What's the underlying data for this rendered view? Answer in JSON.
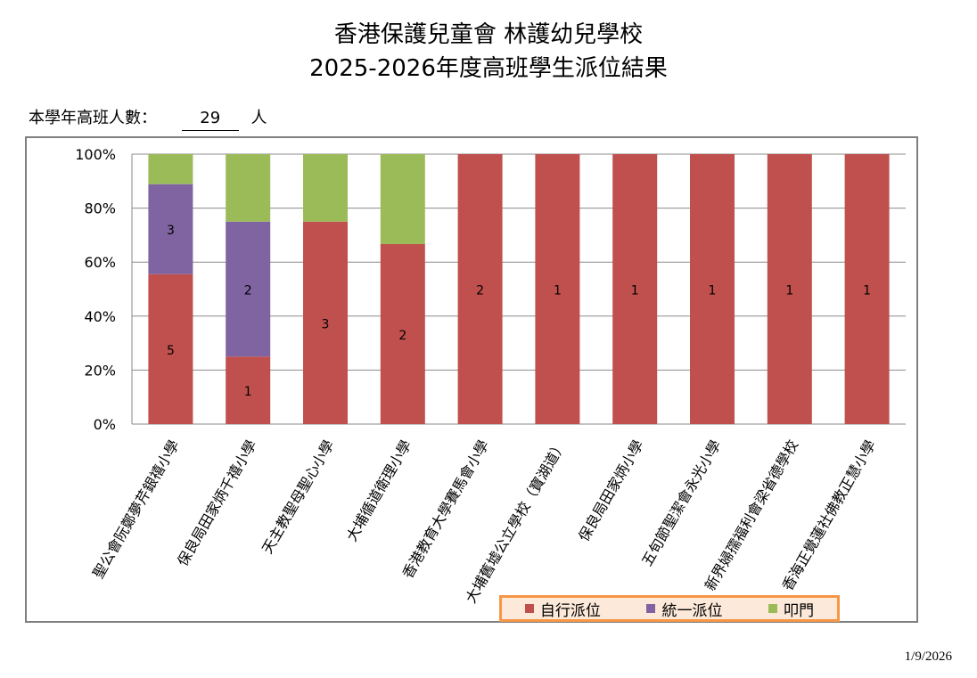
{
  "title_line1": "香港保護兒童會 林護幼兒學校",
  "title_line2": "2025-2026年度高班學生派位結果",
  "student_count": {
    "label": "本學年高班人數：",
    "value": "29",
    "unit": "人"
  },
  "date": "1/9/2026",
  "colors": {
    "self": "#c0504d",
    "unified": "#8064a2",
    "door": "#9bbb59",
    "legend_bg": "#fde9d9",
    "legend_border": "#f79646"
  },
  "chart_data": {
    "type": "bar",
    "stacked": true,
    "percent_stacked": true,
    "categories": [
      "聖公會阮鄭夢芹銀禧小學",
      "保良局田家炳千禧小學",
      "天主教聖母聖心小學",
      "大埔循道衛理小學",
      "香港教育大學賽馬會小學",
      "大埔舊墟公立學校（寶湖道）",
      "保良局田家炳小學",
      "五旬節聖潔會永光小學",
      "新界婦孺福利會梁省德學校",
      "香海正覺蓮社佛教正慧小學"
    ],
    "series": [
      {
        "name": "自行派位",
        "values": [
          5,
          1,
          3,
          2,
          2,
          1,
          1,
          1,
          1,
          1
        ]
      },
      {
        "name": "統一派位",
        "values": [
          3,
          2,
          0,
          0,
          0,
          0,
          0,
          0,
          0,
          0
        ]
      },
      {
        "name": "叩門",
        "values": [
          1,
          1,
          1,
          1,
          0,
          0,
          0,
          0,
          0,
          0
        ]
      }
    ],
    "y_ticks": [
      "0%",
      "20%",
      "40%",
      "60%",
      "80%",
      "100%"
    ],
    "ylim": [
      0,
      100
    ],
    "grid": true,
    "legend_position": "bottom-right"
  }
}
